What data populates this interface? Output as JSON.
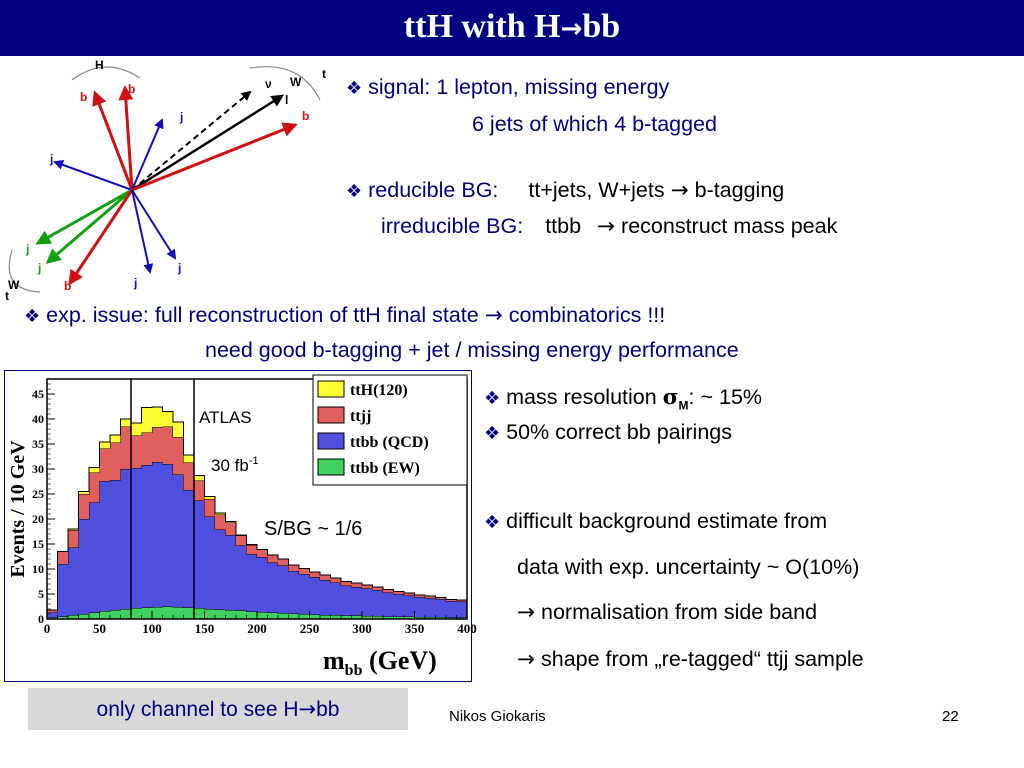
{
  "slide": {
    "title": "ttH with H",
    "title_arrow": "→",
    "title_suffix": "bb"
  },
  "icons": {
    "bullet": "❖",
    "arrow": "→"
  },
  "colors": {
    "title_bg": "#000080",
    "text_blue": "#000080",
    "footer_bg": "#d8d8d8"
  },
  "signal": {
    "label": "signal:",
    "line1": "1 lepton, missing energy",
    "line2": "6 jets of which 4 b-tagged"
  },
  "background": {
    "reducible_label": "reducible BG:",
    "reducible_text": "tt+jets, W+jets",
    "reducible_result": "b-tagging",
    "irreducible_label": "irreducible BG:",
    "irreducible_text": "ttbb",
    "irreducible_result": "reconstruct mass peak"
  },
  "exp_issue": {
    "label": "exp. issue:",
    "line1": "full reconstruction of ttH final state",
    "line1_result": "combinatorics !!!",
    "line2": "need good b-tagging + jet / missing energy performance"
  },
  "right_bullets": {
    "mass_res_prefix": "mass resolution",
    "mass_res_symbol": "σ",
    "mass_res_sub": "M",
    "mass_res_suffix": ": ~ 15%",
    "pairings": "50% correct bb pairings",
    "difficult": "difficult background estimate from",
    "data_unc": "data with exp. uncertainty ~ O(10%)",
    "norm": "normalisation from side band",
    "shape": "shape from „re-tagged“  ttjj sample"
  },
  "diagram": {
    "labels": {
      "H": "H",
      "b1": "b",
      "b2": "b",
      "t_top": "t",
      "W_top": "W",
      "nu": "ν",
      "l": "l",
      "b_right": "b",
      "j_mid": "j",
      "j_left": "j",
      "j_green1": "j",
      "j_green2": "j",
      "W_bottom": "W",
      "t_bottom": "t",
      "b_bottom": "b",
      "j_low1": "j",
      "j_low2": "j"
    }
  },
  "chart_data": {
    "type": "bar",
    "stacked": true,
    "title": "",
    "xlabel_main": "m",
    "xlabel_sub": "bb",
    "xlabel_unit": "(GeV)",
    "ylabel": "Events / 10 GeV",
    "xlim": [
      0,
      400
    ],
    "ylim": [
      0,
      48
    ],
    "xticks": [
      0,
      50,
      100,
      150,
      200,
      250,
      300,
      350,
      400
    ],
    "yticks": [
      0,
      5,
      10,
      15,
      20,
      25,
      30,
      35,
      40,
      45
    ],
    "x": [
      5,
      15,
      25,
      35,
      45,
      55,
      65,
      75,
      85,
      95,
      105,
      115,
      125,
      135,
      145,
      155,
      165,
      175,
      185,
      195,
      205,
      215,
      225,
      235,
      245,
      255,
      265,
      275,
      285,
      295,
      305,
      315,
      325,
      335,
      345,
      355,
      365,
      375,
      385,
      395
    ],
    "series": [
      {
        "name": "ttbb (EW)",
        "color": "#40d060",
        "values": [
          0.3,
          0.5,
          0.8,
          1.0,
          1.3,
          1.6,
          1.8,
          2.0,
          2.2,
          2.3,
          2.4,
          2.5,
          2.4,
          2.3,
          2.2,
          2.0,
          1.9,
          1.8,
          1.7,
          1.5,
          1.4,
          1.3,
          1.2,
          1.1,
          1.0,
          0.9,
          0.8,
          0.8,
          0.7,
          0.7,
          0.6,
          0.6,
          0.5,
          0.5,
          0.5,
          0.4,
          0.4,
          0.4,
          0.3,
          0.3
        ]
      },
      {
        "name": "ttbb (QCD)",
        "color": "#5050e0",
        "values": [
          1.0,
          10.5,
          13.5,
          19.0,
          22.0,
          26.0,
          26.0,
          28.0,
          28.0,
          28.5,
          29.0,
          28.5,
          26.5,
          23.5,
          21.5,
          18.5,
          16.0,
          15.0,
          13.0,
          11.5,
          11.0,
          10.0,
          9.5,
          8.5,
          8.0,
          7.5,
          7.0,
          6.5,
          6.0,
          5.7,
          5.5,
          5.2,
          4.8,
          4.5,
          4.2,
          4.0,
          3.8,
          3.6,
          3.3,
          3.2
        ]
      },
      {
        "name": "ttjj",
        "color": "#e06060",
        "values": [
          0.5,
          2.5,
          3.5,
          5.0,
          6.0,
          6.5,
          7.5,
          8.5,
          6.5,
          6.5,
          7.0,
          7.5,
          7.5,
          5.5,
          4.0,
          3.5,
          3.0,
          2.5,
          2.0,
          1.8,
          1.5,
          1.5,
          1.3,
          1.2,
          1.1,
          1.0,
          1.0,
          0.9,
          0.8,
          0.8,
          0.7,
          0.6,
          0.6,
          0.5,
          0.5,
          0.4,
          0.4,
          0.3,
          0.3,
          0.3
        ]
      },
      {
        "name": "ttH(120)",
        "color": "#ffff33",
        "values": [
          0.0,
          0.0,
          0.2,
          0.5,
          1.0,
          1.3,
          1.5,
          1.5,
          2.5,
          5.0,
          4.0,
          3.0,
          3.0,
          1.5,
          1.0,
          0.5,
          0.3,
          0.2,
          0.1,
          0.1,
          0.0,
          0.0,
          0.0,
          0.0,
          0.0,
          0.0,
          0.0,
          0.0,
          0.0,
          0.0,
          0.0,
          0.0,
          0.0,
          0.0,
          0.0,
          0.0,
          0.0,
          0.0,
          0.0,
          0.0
        ]
      }
    ],
    "legend": [
      "ttH(120)",
      "ttjj",
      "ttbb (QCD)",
      "ttbb (EW)"
    ],
    "legend_position": "top-right",
    "vlines": [
      80,
      140
    ],
    "annotations": {
      "experiment": "ATLAS",
      "lumi": "30 fb",
      "lumi_sup": "-1",
      "ratio": "S/BG ~ 1/6"
    }
  },
  "footer": {
    "box_text": "only channel to see H",
    "box_arrow": "→",
    "box_suffix": "bb",
    "author": "Nikos Giokaris",
    "page": "22"
  }
}
